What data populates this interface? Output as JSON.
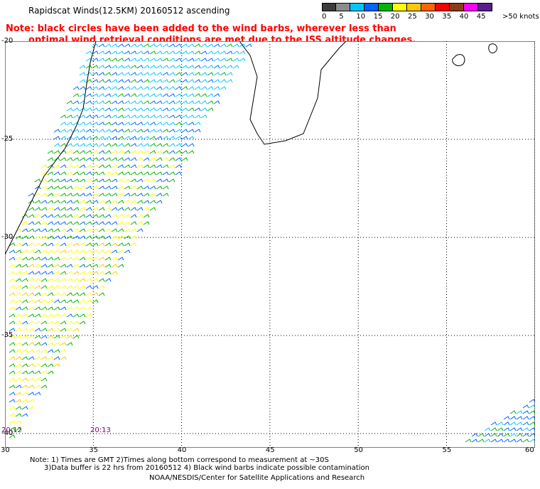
{
  "title": "Rapidscat Winds(12.5KM) 20160512 ascending",
  "note": {
    "line1": "Note: black circles have been added to the wind barbs, wherever less than",
    "line2": "optimal wind retrieval conditions are met due to the ISS altitude changes."
  },
  "legend": {
    "unit_label": ">50 knots",
    "values": [
      "0",
      "5",
      "10",
      "15",
      "20",
      "25",
      "30",
      "35",
      "40",
      "45"
    ],
    "colors": [
      "#3c3c3c",
      "#8c8c8c",
      "#00c8ff",
      "#0064ff",
      "#00b400",
      "#ffff00",
      "#ffc800",
      "#ff6400",
      "#ff0000",
      "#8c3c14",
      "#ff00ff",
      "#5a1e8c"
    ]
  },
  "map": {
    "lat_labels": [
      "-20",
      "-25",
      "-30",
      "-35",
      "-40"
    ],
    "lon_labels": [
      "30",
      "35",
      "40",
      "45",
      "50",
      "55",
      "60"
    ]
  },
  "times": [
    "20:12",
    "20:13"
  ],
  "footer": {
    "line1": "Note: 1) Times are GMT 2)Times along bottom correspond to measurement at ~30S",
    "line2": "3)Data buffer is 22 hrs from 20160512 4) Black wind barbs indicate possible contamination",
    "line3": "NOAA/NESDIS/Center for Satellite Applications and Research"
  }
}
